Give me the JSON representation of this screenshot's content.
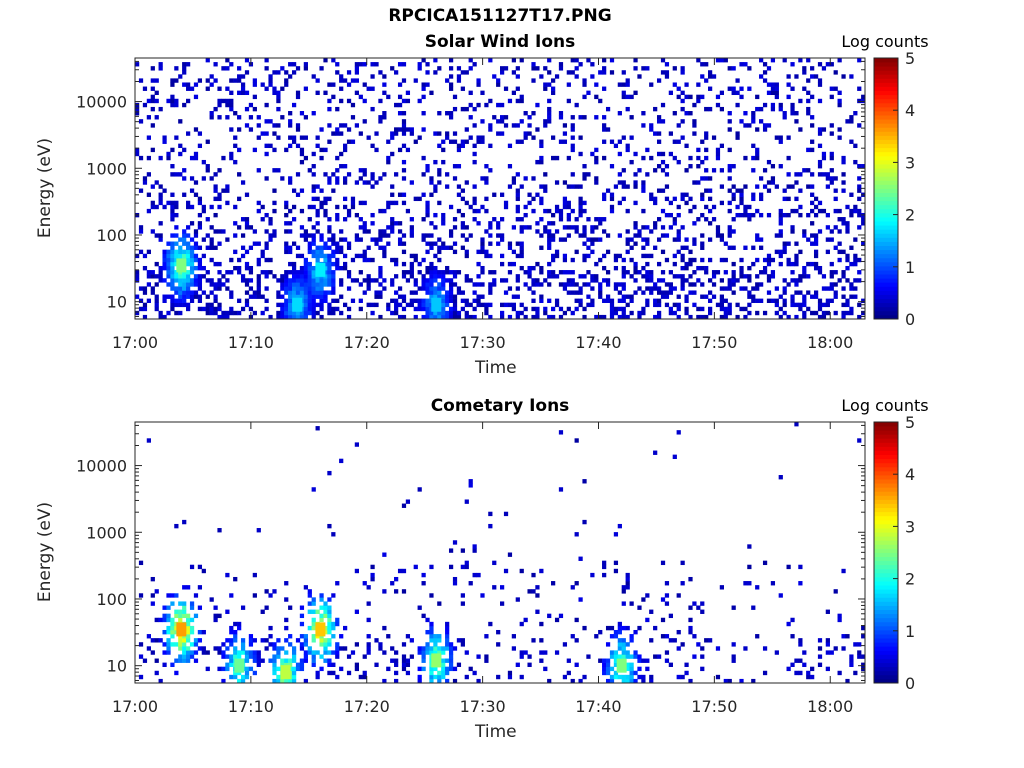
{
  "header": {
    "title": "RPCICA151127T17.PNG"
  },
  "colorbar": {
    "label": "Log counts",
    "ticks": [
      0,
      1,
      2,
      3,
      4,
      5
    ],
    "colormap": "jet"
  },
  "chart_data": [
    {
      "type": "heatmap",
      "title": "Solar Wind Ions",
      "xlabel": "Time",
      "ylabel": "Energy (eV)",
      "x_range": [
        "17:00",
        "18:03"
      ],
      "x_ticks": [
        "17:00",
        "17:10",
        "17:20",
        "17:30",
        "17:40",
        "17:50",
        "18:00"
      ],
      "y_scale": "log",
      "y_range": [
        5.5,
        45000
      ],
      "y_ticks": [
        10,
        100,
        1000,
        10000
      ],
      "z_range": [
        0,
        5
      ],
      "z_label": "Log counts",
      "hotspots": [
        {
          "time": "17:04",
          "energy": 35,
          "log_counts": 2.5
        },
        {
          "time": "17:16",
          "energy": 30,
          "log_counts": 1.8
        },
        {
          "time": "17:14",
          "energy": 9,
          "log_counts": 1.7
        },
        {
          "time": "17:26",
          "energy": 9,
          "log_counts": 1.6
        }
      ]
    },
    {
      "type": "heatmap",
      "title": "Cometary Ions",
      "xlabel": "Time",
      "ylabel": "Energy (eV)",
      "x_range": [
        "17:00",
        "18:03"
      ],
      "x_ticks": [
        "17:00",
        "17:10",
        "17:20",
        "17:30",
        "17:40",
        "17:50",
        "18:00"
      ],
      "y_scale": "log",
      "y_range": [
        5.5,
        45000
      ],
      "y_ticks": [
        10,
        100,
        1000,
        10000
      ],
      "z_range": [
        0,
        5
      ],
      "z_label": "Log counts",
      "hotspots": [
        {
          "time": "17:04",
          "energy": 35,
          "log_counts": 3.6
        },
        {
          "time": "17:16",
          "energy": 35,
          "log_counts": 3.4
        },
        {
          "time": "17:13",
          "energy": 8,
          "log_counts": 2.8
        },
        {
          "time": "17:26",
          "energy": 12,
          "log_counts": 2.6
        },
        {
          "time": "17:42",
          "energy": 10,
          "log_counts": 2.5
        },
        {
          "time": "17:09",
          "energy": 10,
          "log_counts": 2.4
        }
      ]
    }
  ]
}
